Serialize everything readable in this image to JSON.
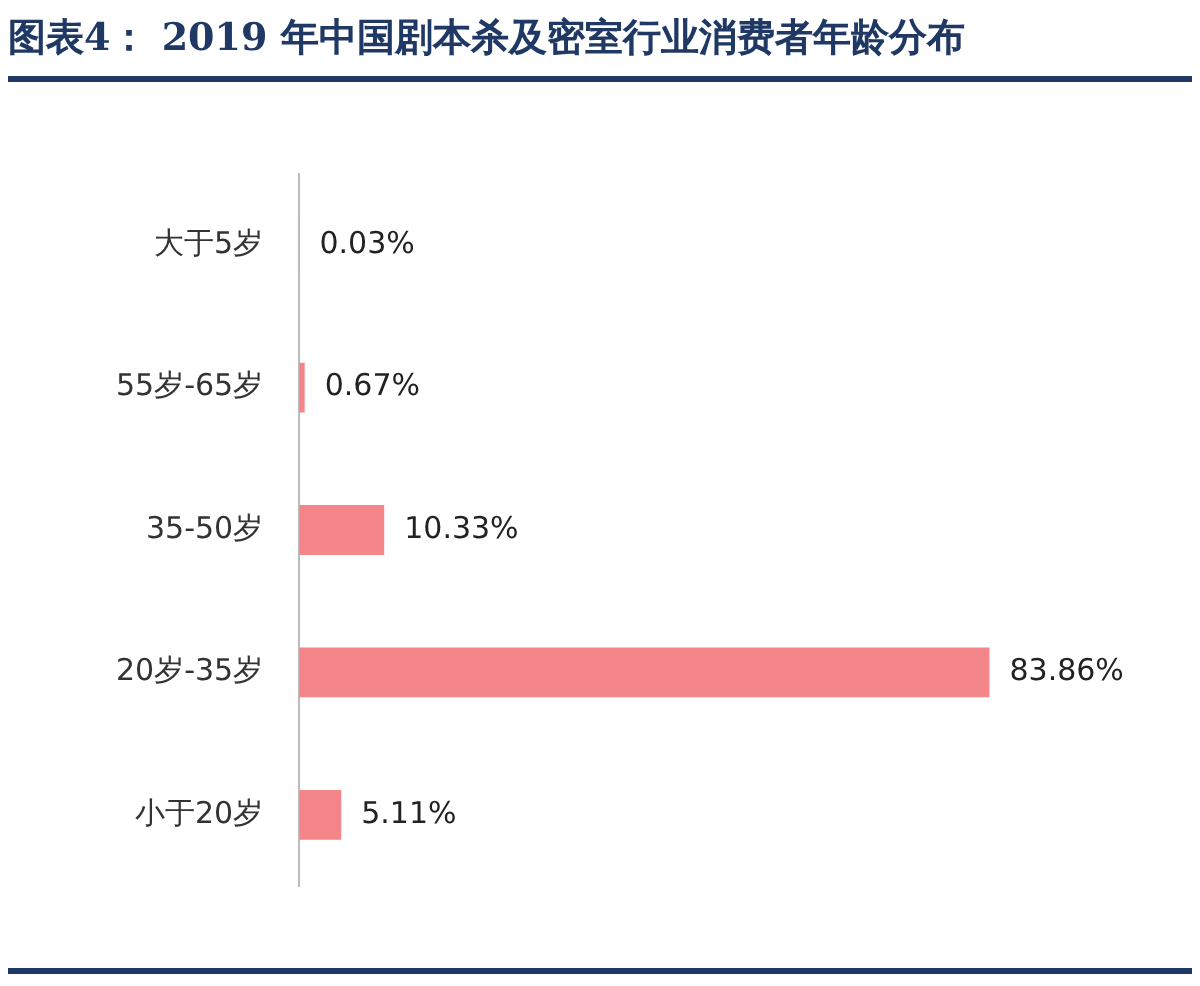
{
  "chart_data": {
    "type": "bar",
    "title": "图表4：  2019 年中国剧本杀及密室行业消费者年龄分布",
    "orientation": "horizontal",
    "categories": [
      "大于5岁",
      "55岁-65岁",
      "35-50岁",
      "20岁-35岁",
      "小于20岁"
    ],
    "values": [
      0.03,
      0.67,
      10.33,
      83.86,
      5.11
    ],
    "value_labels": [
      "0.03%",
      "0.67%",
      "10.33%",
      "83.86%",
      "5.11%"
    ],
    "color": "#f4868a",
    "grid": false,
    "legend": false
  }
}
